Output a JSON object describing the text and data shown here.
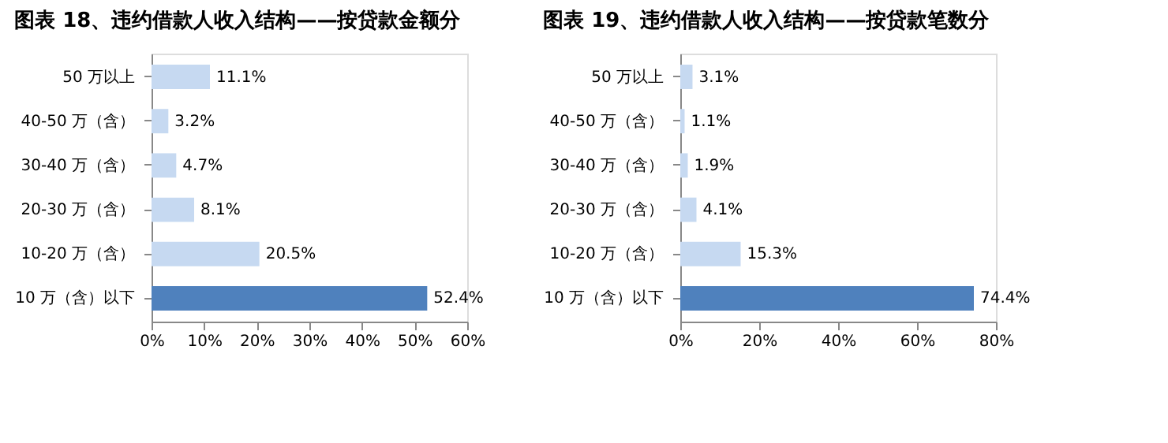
{
  "chart_data": [
    {
      "type": "bar",
      "orientation": "horizontal",
      "title": "图表 18、违约借款人收入结构——按贷款金额分",
      "categories": [
        "50 万以上",
        "40-50 万（含）",
        "30-40 万（含）",
        "20-30 万（含）",
        "10-20 万（含）",
        "10 万（含）以下"
      ],
      "values": [
        11.1,
        3.2,
        4.7,
        8.1,
        20.5,
        52.4
      ],
      "value_labels": [
        "11.1%",
        "3.2%",
        "4.7%",
        "8.1%",
        "20.5%",
        "52.4%"
      ],
      "colors": [
        "#c6d9f1",
        "#c6d9f1",
        "#c6d9f1",
        "#c6d9f1",
        "#c6d9f1",
        "#4f81bd"
      ],
      "xlim": [
        0,
        60
      ],
      "xticks": [
        {
          "value": 0,
          "label": "0%"
        },
        {
          "value": 10,
          "label": "10%"
        },
        {
          "value": 20,
          "label": "20%"
        },
        {
          "value": 30,
          "label": "30%"
        },
        {
          "value": 40,
          "label": "40%"
        },
        {
          "value": 50,
          "label": "50%"
        },
        {
          "value": 60,
          "label": "60%"
        }
      ],
      "grid": false
    },
    {
      "type": "bar",
      "orientation": "horizontal",
      "title": "图表 19、违约借款人收入结构——按贷款笔数分",
      "categories": [
        "50 万以上",
        "40-50 万（含）",
        "30-40 万（含）",
        "20-30 万（含）",
        "10-20 万（含）",
        "10 万（含）以下"
      ],
      "values": [
        3.1,
        1.1,
        1.9,
        4.1,
        15.3,
        74.4
      ],
      "value_labels": [
        "3.1%",
        "1.1%",
        "1.9%",
        "4.1%",
        "15.3%",
        "74.4%"
      ],
      "colors": [
        "#c6d9f1",
        "#c6d9f1",
        "#c6d9f1",
        "#c6d9f1",
        "#c6d9f1",
        "#4f81bd"
      ],
      "xlim": [
        0,
        80
      ],
      "xticks": [
        {
          "value": 0,
          "label": "0%"
        },
        {
          "value": 20,
          "label": "20%"
        },
        {
          "value": 40,
          "label": "40%"
        },
        {
          "value": 60,
          "label": "60%"
        },
        {
          "value": 80,
          "label": "80%"
        }
      ],
      "grid": false
    }
  ]
}
